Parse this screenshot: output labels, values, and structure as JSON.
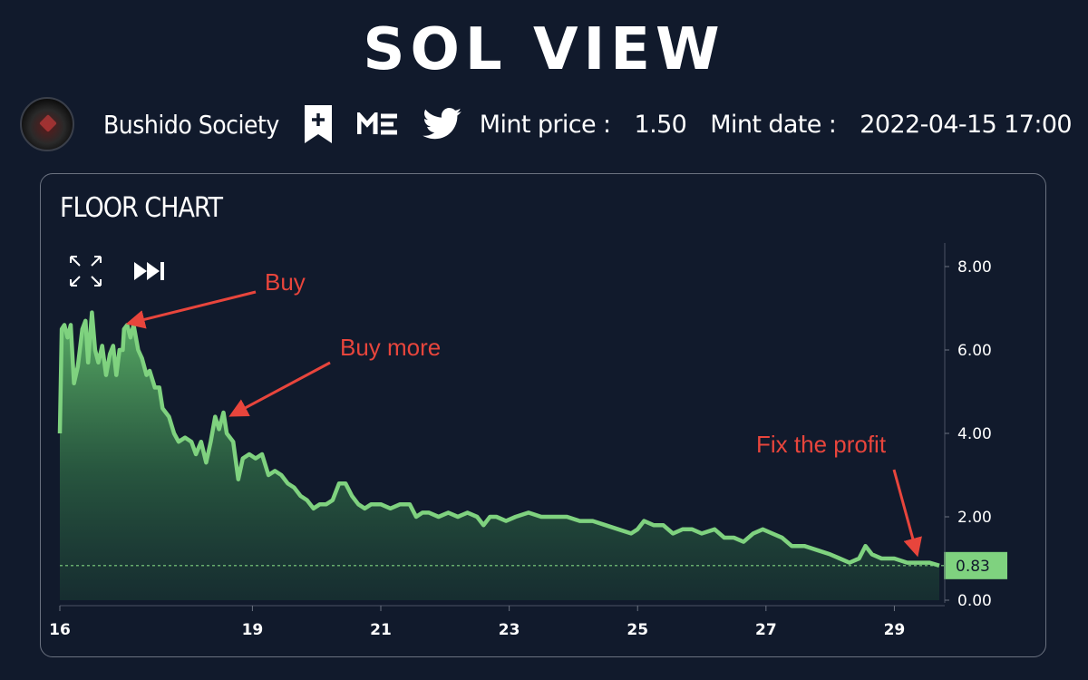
{
  "brand": "SOL VIEW",
  "collection": {
    "name": "Bushido Society",
    "icons": [
      "bookmark-add-icon",
      "magic-eden-icon",
      "twitter-icon"
    ]
  },
  "mint": {
    "price_label": "Mint price :",
    "price_value": "1.50",
    "date_label": "Mint date :",
    "date_value": "2022-04-15 17:00"
  },
  "colors": {
    "background": "#111a2c",
    "line": "#7fd27f",
    "annotation": "#e8453c",
    "price_tag": "#7fd27f"
  },
  "chart_data": {
    "type": "area",
    "title": "FLOOR CHART",
    "ylim": [
      0,
      8
    ],
    "y_ticks": [
      "8.00",
      "6.00",
      "4.00",
      "2.00",
      "0.00"
    ],
    "y_tick_values": [
      8,
      6,
      4,
      2,
      0
    ],
    "x_ticks": [
      "16",
      "19",
      "21",
      "23",
      "25",
      "27",
      "29"
    ],
    "x_tick_values": [
      16,
      19,
      21,
      23,
      25,
      27,
      29
    ],
    "xlim": [
      16,
      29.7
    ],
    "current_value": 0.83,
    "current_label": "0.83",
    "grid": false,
    "controls": [
      "expand-icon",
      "fast-forward-icon"
    ],
    "points": [
      [
        16.0,
        4.0
      ],
      [
        16.03,
        6.5
      ],
      [
        16.07,
        6.6
      ],
      [
        16.12,
        6.3
      ],
      [
        16.17,
        6.6
      ],
      [
        16.22,
        5.2
      ],
      [
        16.28,
        5.6
      ],
      [
        16.35,
        6.5
      ],
      [
        16.4,
        6.7
      ],
      [
        16.44,
        5.7
      ],
      [
        16.5,
        6.9
      ],
      [
        16.55,
        6.0
      ],
      [
        16.6,
        5.7
      ],
      [
        16.66,
        6.1
      ],
      [
        16.72,
        5.4
      ],
      [
        16.78,
        5.9
      ],
      [
        16.83,
        6.1
      ],
      [
        16.88,
        5.4
      ],
      [
        16.93,
        6.0
      ],
      [
        16.98,
        6.0
      ],
      [
        17.0,
        6.5
      ],
      [
        17.05,
        6.6
      ],
      [
        17.1,
        6.3
      ],
      [
        17.15,
        6.6
      ],
      [
        17.22,
        6.0
      ],
      [
        17.28,
        5.8
      ],
      [
        17.35,
        5.4
      ],
      [
        17.4,
        5.5
      ],
      [
        17.48,
        5.1
      ],
      [
        17.55,
        5.1
      ],
      [
        17.6,
        4.6
      ],
      [
        17.7,
        4.4
      ],
      [
        17.78,
        4.0
      ],
      [
        17.85,
        3.8
      ],
      [
        17.95,
        3.9
      ],
      [
        18.05,
        3.8
      ],
      [
        18.12,
        3.5
      ],
      [
        18.2,
        3.8
      ],
      [
        18.28,
        3.3
      ],
      [
        18.35,
        3.8
      ],
      [
        18.42,
        4.4
      ],
      [
        18.48,
        4.1
      ],
      [
        18.55,
        4.5
      ],
      [
        18.6,
        4.0
      ],
      [
        18.7,
        3.8
      ],
      [
        18.78,
        2.9
      ],
      [
        18.85,
        3.4
      ],
      [
        18.95,
        3.5
      ],
      [
        19.05,
        3.4
      ],
      [
        19.15,
        3.5
      ],
      [
        19.25,
        3.0
      ],
      [
        19.35,
        3.1
      ],
      [
        19.45,
        3.0
      ],
      [
        19.55,
        2.8
      ],
      [
        19.65,
        2.7
      ],
      [
        19.75,
        2.5
      ],
      [
        19.85,
        2.4
      ],
      [
        19.95,
        2.2
      ],
      [
        20.05,
        2.3
      ],
      [
        20.15,
        2.3
      ],
      [
        20.25,
        2.4
      ],
      [
        20.35,
        2.8
      ],
      [
        20.45,
        2.8
      ],
      [
        20.55,
        2.5
      ],
      [
        20.65,
        2.3
      ],
      [
        20.75,
        2.2
      ],
      [
        20.85,
        2.3
      ],
      [
        21.0,
        2.3
      ],
      [
        21.15,
        2.2
      ],
      [
        21.3,
        2.3
      ],
      [
        21.45,
        2.3
      ],
      [
        21.55,
        2.0
      ],
      [
        21.65,
        2.1
      ],
      [
        21.75,
        2.1
      ],
      [
        21.9,
        2.0
      ],
      [
        22.05,
        2.1
      ],
      [
        22.2,
        2.0
      ],
      [
        22.35,
        2.1
      ],
      [
        22.5,
        2.0
      ],
      [
        22.6,
        1.8
      ],
      [
        22.7,
        2.0
      ],
      [
        22.8,
        2.0
      ],
      [
        22.95,
        1.9
      ],
      [
        23.1,
        2.0
      ],
      [
        23.3,
        2.1
      ],
      [
        23.5,
        2.0
      ],
      [
        23.7,
        2.0
      ],
      [
        23.9,
        2.0
      ],
      [
        24.1,
        1.9
      ],
      [
        24.3,
        1.9
      ],
      [
        24.5,
        1.8
      ],
      [
        24.7,
        1.7
      ],
      [
        24.9,
        1.6
      ],
      [
        25.0,
        1.7
      ],
      [
        25.1,
        1.9
      ],
      [
        25.25,
        1.8
      ],
      [
        25.4,
        1.8
      ],
      [
        25.55,
        1.6
      ],
      [
        25.7,
        1.7
      ],
      [
        25.85,
        1.7
      ],
      [
        26.0,
        1.6
      ],
      [
        26.2,
        1.7
      ],
      [
        26.35,
        1.5
      ],
      [
        26.5,
        1.5
      ],
      [
        26.65,
        1.4
      ],
      [
        26.8,
        1.6
      ],
      [
        26.95,
        1.7
      ],
      [
        27.1,
        1.6
      ],
      [
        27.25,
        1.5
      ],
      [
        27.4,
        1.3
      ],
      [
        27.6,
        1.3
      ],
      [
        27.8,
        1.2
      ],
      [
        28.0,
        1.1
      ],
      [
        28.15,
        1.0
      ],
      [
        28.3,
        0.9
      ],
      [
        28.45,
        1.0
      ],
      [
        28.55,
        1.3
      ],
      [
        28.65,
        1.1
      ],
      [
        28.8,
        1.0
      ],
      [
        29.0,
        1.0
      ],
      [
        29.2,
        0.9
      ],
      [
        29.4,
        0.9
      ],
      [
        29.55,
        0.9
      ],
      [
        29.7,
        0.83
      ]
    ],
    "annotations": [
      {
        "text": "Buy",
        "x": 17.0,
        "y": 6.6
      },
      {
        "text": "Buy more",
        "x": 18.6,
        "y": 4.4
      },
      {
        "text": "Fix the profit",
        "x": 29.35,
        "y": 0.95
      }
    ]
  }
}
